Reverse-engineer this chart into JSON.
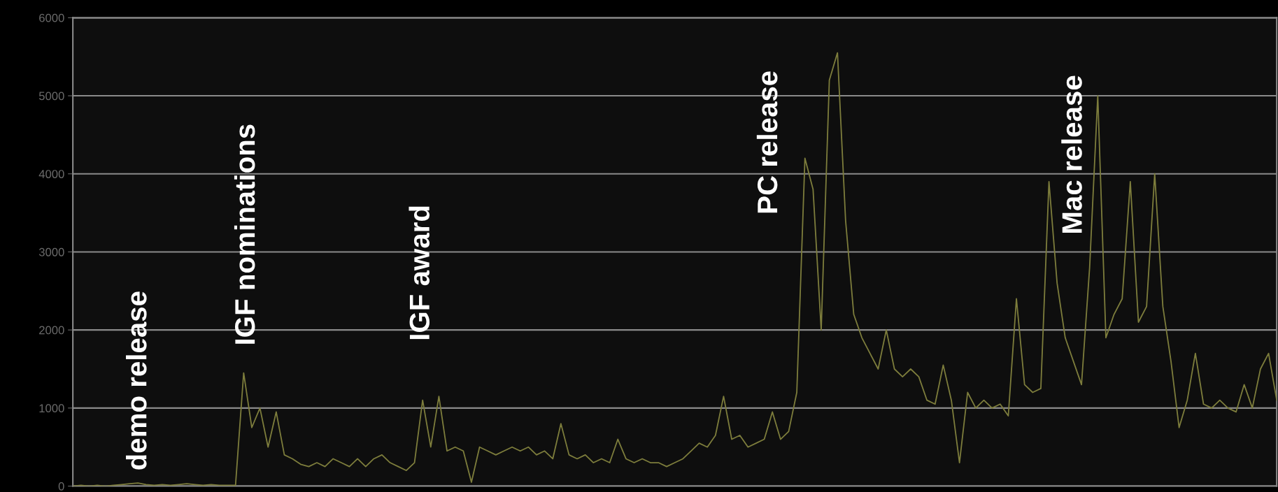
{
  "chart_data": {
    "type": "line",
    "categories": [
      null,
      null,
      null,
      null,
      null,
      null,
      null,
      null,
      null,
      null,
      null,
      null,
      null,
      null,
      null,
      null,
      null,
      null,
      null,
      null,
      null,
      null,
      null,
      null,
      null,
      null,
      null,
      null,
      null,
      null,
      null,
      null,
      null,
      null,
      null,
      null,
      null,
      null,
      null,
      null,
      null,
      null,
      null,
      null,
      null,
      null,
      null,
      null,
      null,
      null,
      null,
      null,
      null,
      null,
      null,
      null,
      null,
      null,
      null,
      null,
      null,
      null,
      null,
      null,
      null,
      null,
      null,
      null,
      null,
      null,
      null,
      null,
      null,
      null,
      null,
      null,
      null,
      null,
      null,
      null,
      null,
      null,
      null,
      null,
      null,
      null,
      null,
      null,
      null,
      null,
      null,
      null,
      null,
      null,
      null,
      null,
      null,
      null,
      null,
      null,
      null,
      null,
      null,
      null,
      null,
      null,
      null,
      null,
      null,
      null,
      null,
      null,
      null,
      null,
      null,
      null,
      null,
      null,
      null,
      null,
      null,
      null,
      null,
      null,
      null,
      null,
      null,
      null,
      null,
      null,
      null,
      null,
      null,
      null,
      null,
      null,
      null,
      null,
      null,
      null,
      null,
      null,
      null,
      null,
      null,
      null,
      null,
      null,
      null
    ],
    "series": [
      {
        "color": "#7d7d3c",
        "values": [
          0,
          10,
          0,
          10,
          0,
          10,
          20,
          30,
          40,
          20,
          10,
          20,
          10,
          20,
          30,
          20,
          10,
          20,
          10,
          10,
          10,
          1450,
          750,
          1000,
          500,
          950,
          400,
          350,
          280,
          250,
          300,
          250,
          350,
          300,
          250,
          350,
          250,
          350,
          400,
          300,
          250,
          200,
          300,
          1100,
          500,
          1150,
          450,
          500,
          450,
          50,
          500,
          450,
          400,
          450,
          500,
          450,
          500,
          400,
          450,
          350,
          800,
          400,
          350,
          400,
          300,
          350,
          300,
          600,
          350,
          300,
          350,
          300,
          300,
          250,
          300,
          350,
          450,
          550,
          500,
          650,
          1150,
          600,
          650,
          500,
          550,
          600,
          950,
          600,
          700,
          1200,
          4200,
          3800,
          2000,
          5200,
          5550,
          3400,
          2200,
          1900,
          1700,
          1500,
          2000,
          1500,
          1400,
          1500,
          1400,
          1100,
          1050,
          1550,
          1100,
          300,
          1200,
          1000,
          1100,
          1000,
          1050,
          900,
          2400,
          1300,
          1200,
          1250,
          3900,
          2600,
          1900,
          1600,
          1300,
          2800,
          5000,
          1900,
          2200,
          2400,
          3900,
          2100,
          2300,
          4000,
          2300,
          1600,
          750,
          1100,
          1700,
          1050,
          1000,
          1100,
          1000,
          950,
          1300,
          1000,
          1500,
          1700,
          1100
        ]
      }
    ],
    "ylim": [
      0,
      6000
    ],
    "yticks": [
      0,
      1000,
      2000,
      3000,
      4000,
      5000,
      6000
    ],
    "grid": "y",
    "tick_labels": "y",
    "marker": "none",
    "line_style": "solid",
    "annotations": [
      "demo release",
      "IGF nominations",
      "IGF award",
      "PC release",
      "Mac release"
    ]
  }
}
